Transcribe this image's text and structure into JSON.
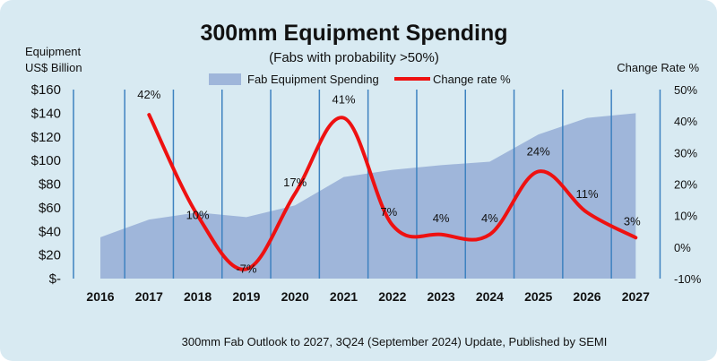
{
  "chart_data": {
    "type": "area",
    "title": "300mm Equipment Spending",
    "subtitle": "(Fabs with probability >50%)",
    "left_axis_title": [
      "Equipment",
      "US$ Billion"
    ],
    "right_axis_title": "Change Rate %",
    "categories": [
      "2016",
      "2017",
      "2018",
      "2019",
      "2020",
      "2021",
      "2022",
      "2023",
      "2024",
      "2025",
      "2026",
      "2027"
    ],
    "series": [
      {
        "name": "Fab Equipment Spending",
        "kind": "area",
        "axis": "left",
        "color": "#9fb6da",
        "values": [
          35,
          50,
          56,
          52,
          62,
          86,
          92,
          96,
          99,
          122,
          136,
          140
        ]
      },
      {
        "name": "Change rate %",
        "kind": "line",
        "axis": "right",
        "color": "#ee1111",
        "values": [
          null,
          42,
          10,
          -7,
          17,
          41,
          7,
          4,
          4,
          24,
          11,
          3
        ],
        "labels": [
          "",
          "42%",
          "10%",
          "-7%",
          "17%",
          "41%",
          "7%",
          "4%",
          "4%",
          "24%",
          "11%",
          "3%"
        ]
      }
    ],
    "left_axis": {
      "min": 0,
      "max": 160,
      "step": 20,
      "tick_labels": [
        "$-",
        "$20",
        "$40",
        "$60",
        "$80",
        "$100",
        "$120",
        "$140",
        "$160"
      ]
    },
    "right_axis": {
      "min": -10,
      "max": 50,
      "step": 10,
      "tick_labels": [
        "-10%",
        "0%",
        "10%",
        "20%",
        "30%",
        "40%",
        "50%"
      ]
    },
    "legend_position": "top",
    "source_note": "300mm Fab Outlook to 2027, 3Q24 (September 2024) Update, Published by SEMI",
    "gridlines": "vertical",
    "gridline_color": "#3e82c0",
    "background_color": "#d8eaf2"
  }
}
